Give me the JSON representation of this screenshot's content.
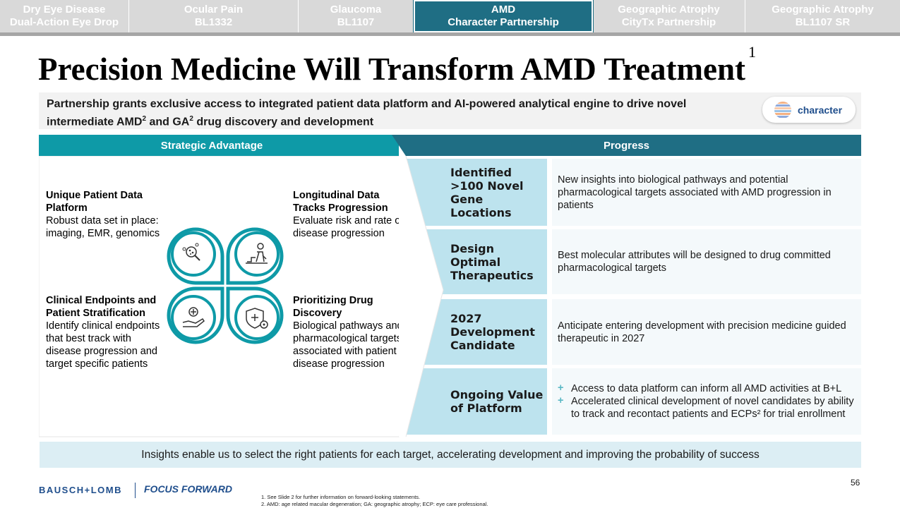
{
  "tabs": [
    {
      "line1": "Dry Eye Disease",
      "line2": "Dual-Action Eye Drop",
      "active": false
    },
    {
      "line1": "Ocular Pain",
      "line2": "BL1332",
      "active": false
    },
    {
      "line1": "Glaucoma",
      "line2": "BL1107",
      "active": false
    },
    {
      "line1": "AMD",
      "line2": "Character Partnership",
      "active": true
    },
    {
      "line1": "Geographic Atrophy",
      "line2": "CityTx Partnership",
      "active": false
    },
    {
      "line1": "Geographic Atrophy",
      "line2": "BL1107 SR",
      "active": false
    }
  ],
  "title": {
    "text": "Precision Medicine Will Transform AMD Treatment",
    "footnote": "1"
  },
  "intro": {
    "part1": "Partnership grants exclusive access to integrated patient data platform and AI-powered analytical engine to drive novel intermediate AMD",
    "sup1": "2",
    "part2": " and GA",
    "sup2": "2",
    "part3": " drug discovery and development",
    "logo_text": "character"
  },
  "headers": {
    "left": "Strategic Advantage",
    "right": "Progress"
  },
  "advantages": [
    {
      "title": "Unique Patient Data Platform",
      "body": "Robust data set in place: imaging, EMR, genomics"
    },
    {
      "title": "Longitudinal Data Tracks Progression",
      "body": "Evaluate risk and rate of disease progression"
    },
    {
      "title": "Clinical Endpoints and Patient Stratification",
      "body": "Identify clinical endpoints that best track with disease progression and target specific patients"
    },
    {
      "title": "Prioritizing Drug Discovery",
      "body": "Biological pathways and pharmacological targets associated with patient disease progression"
    }
  ],
  "icons": [
    "data-search-icon",
    "progression-figure-icon",
    "hand-plus-icon",
    "shield-gear-icon"
  ],
  "progress": [
    {
      "label": "Identified >100 Novel Gene Locations",
      "text": "New insights into biological pathways and potential pharmacological targets associated with AMD progression in patients"
    },
    {
      "label": "Design Optimal Therapeutics",
      "text": "Best molecular attributes will be designed to drug committed pharmacological targets"
    },
    {
      "label": "2027 Development Candidate",
      "text": "Anticipate entering development with precision medicine guided therapeutic in 2027"
    },
    {
      "label": "Ongoing Value of Platform",
      "bullets": [
        "Access to data platform can inform all AMD activities at B+L",
        "Accelerated clinical development of novel candidates by ability to track and recontact patients and ECPs² for trial enrollment"
      ]
    }
  ],
  "footer": {
    "banner": "Insights enable us to select the right patients for each target, accelerating development and improving the probability of success",
    "brand": "BAUSCH+LOMB",
    "brand2": "FOCUS FORWARD",
    "note1": "1. See Slide 2 for further information on forward-looking statements.",
    "note2": "2. AMD: age related macular degeneration; GA: geographic atrophy; ECP: eye care professional.",
    "page": "56"
  },
  "colors": {
    "teal": "#0e9aa7",
    "dark_teal": "#1f6e84",
    "light_blue": "#bde3ee",
    "brand_blue": "#1f4e8c"
  }
}
